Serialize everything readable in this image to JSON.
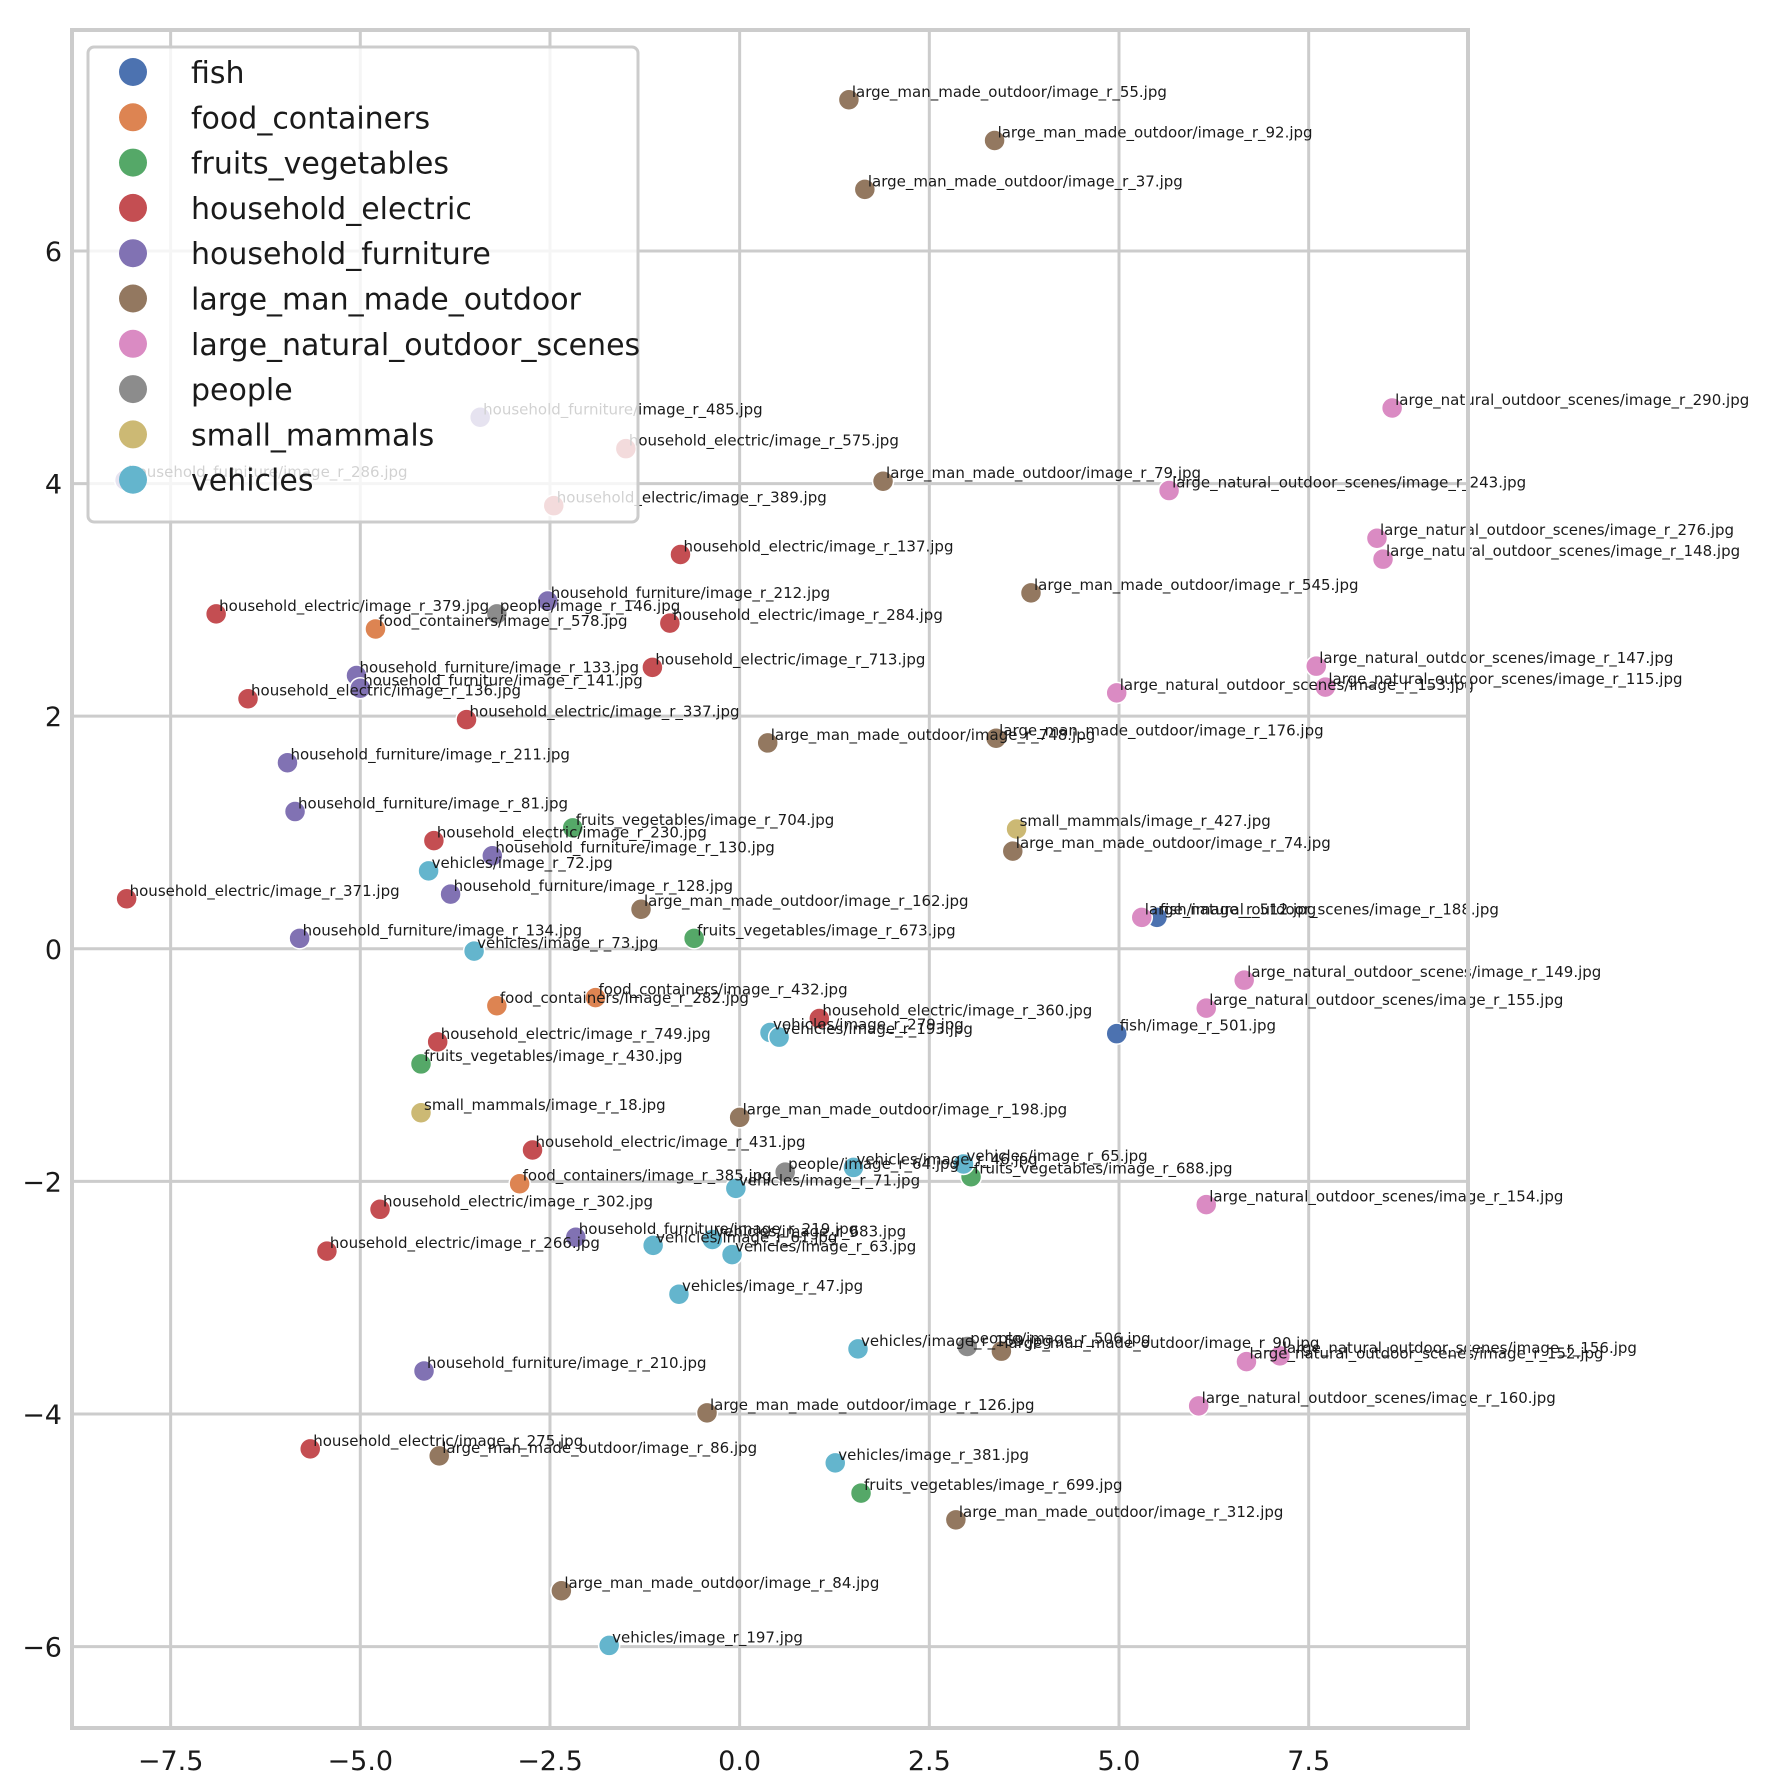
{
  "chart_data": {
    "type": "scatter",
    "title": "",
    "xlabel": "",
    "ylabel": "",
    "xlim": [
      -8.8,
      9.6
    ],
    "ylim": [
      -6.7,
      7.9
    ],
    "xticks": [
      -7.5,
      -5.0,
      -2.5,
      0.0,
      2.5,
      5.0,
      7.5
    ],
    "xtick_labels": [
      "−7.5",
      "−5.0",
      "−2.5",
      "0.0",
      "2.5",
      "5.0",
      "7.5"
    ],
    "yticks": [
      -6,
      -4,
      -2,
      0,
      2,
      4,
      6
    ],
    "ytick_labels": [
      "−6",
      "−4",
      "−2",
      "0",
      "2",
      "4",
      "6"
    ],
    "grid": true,
    "legend_position": "top-left",
    "categories": [
      {
        "name": "fish",
        "color": "#4c72b0"
      },
      {
        "name": "food_containers",
        "color": "#dd8452"
      },
      {
        "name": "fruits_vegetables",
        "color": "#55a868"
      },
      {
        "name": "household_electric",
        "color": "#c44e52"
      },
      {
        "name": "household_furniture",
        "color": "#8172b3"
      },
      {
        "name": "large_man_made_outdoor",
        "color": "#937860"
      },
      {
        "name": "large_natural_outdoor_scenes",
        "color": "#da8bc3"
      },
      {
        "name": "people",
        "color": "#8c8c8c"
      },
      {
        "name": "small_mammals",
        "color": "#ccb974"
      },
      {
        "name": "vehicles",
        "color": "#64b5cd"
      }
    ],
    "points": [
      {
        "x": 5.5,
        "y": 0.27,
        "c": 0,
        "label": "fish/image_r_512.jpg"
      },
      {
        "x": 4.97,
        "y": -0.73,
        "c": 0,
        "label": "fish/image_r_501.jpg"
      },
      {
        "x": -4.8,
        "y": 2.75,
        "c": 1,
        "label": "food_containers/image_r_578.jpg"
      },
      {
        "x": -3.2,
        "y": -0.49,
        "c": 1,
        "label": "food_containers/image_r_282.jpg"
      },
      {
        "x": -1.9,
        "y": -0.42,
        "c": 1,
        "label": "food_containers/image_r_432.jpg"
      },
      {
        "x": -2.9,
        "y": -2.02,
        "c": 1,
        "label": "food_containers/image_r_385.jpg"
      },
      {
        "x": -2.2,
        "y": 1.04,
        "c": 2,
        "label": "fruits_vegetables/image_r_704.jpg"
      },
      {
        "x": -0.6,
        "y": 0.09,
        "c": 2,
        "label": "fruits_vegetables/image_r_673.jpg"
      },
      {
        "x": -4.2,
        "y": -0.99,
        "c": 2,
        "label": "fruits_vegetables/image_r_430.jpg"
      },
      {
        "x": 3.05,
        "y": -1.96,
        "c": 2,
        "label": "fruits_vegetables/image_r_688.jpg"
      },
      {
        "x": 1.6,
        "y": -4.68,
        "c": 2,
        "label": "fruits_vegetables/image_r_699.jpg"
      },
      {
        "x": -1.5,
        "y": 4.3,
        "c": 3,
        "label": "household_electric/image_r_575.jpg"
      },
      {
        "x": -2.45,
        "y": 3.81,
        "c": 3,
        "label": "household_electric/image_r_389.jpg"
      },
      {
        "x": -0.78,
        "y": 3.39,
        "c": 3,
        "label": "household_electric/image_r_137.jpg"
      },
      {
        "x": -6.9,
        "y": 2.88,
        "c": 3,
        "label": "household_electric/image_r_379.jpg"
      },
      {
        "x": -0.92,
        "y": 2.8,
        "c": 3,
        "label": "household_electric/image_r_284.jpg"
      },
      {
        "x": -1.15,
        "y": 2.42,
        "c": 3,
        "label": "household_electric/image_r_713.jpg"
      },
      {
        "x": -6.48,
        "y": 2.15,
        "c": 3,
        "label": "household_electric/image_r_136.jpg"
      },
      {
        "x": -3.6,
        "y": 1.97,
        "c": 3,
        "label": "household_electric/image_r_337.jpg"
      },
      {
        "x": -4.03,
        "y": 0.93,
        "c": 3,
        "label": "household_electric/image_r_230.jpg"
      },
      {
        "x": -8.08,
        "y": 0.43,
        "c": 3,
        "label": "household_electric/image_r_371.jpg"
      },
      {
        "x": 1.05,
        "y": -0.6,
        "c": 3,
        "label": "household_electric/image_r_360.jpg"
      },
      {
        "x": -3.98,
        "y": -0.8,
        "c": 3,
        "label": "household_electric/image_r_749.jpg"
      },
      {
        "x": -2.73,
        "y": -1.73,
        "c": 3,
        "label": "household_electric/image_r_431.jpg"
      },
      {
        "x": -4.74,
        "y": -2.24,
        "c": 3,
        "label": "household_electric/image_r_302.jpg"
      },
      {
        "x": -5.44,
        "y": -2.6,
        "c": 3,
        "label": "household_electric/image_r_266.jpg"
      },
      {
        "x": -5.66,
        "y": -4.3,
        "c": 3,
        "label": "household_electric/image_r_275.jpg"
      },
      {
        "x": -3.42,
        "y": 4.57,
        "c": 4,
        "label": "household_furniture/image_r_485.jpg"
      },
      {
        "x": -8.1,
        "y": 4.03,
        "c": 4,
        "label": "household_furniture/image_r_286.jpg"
      },
      {
        "x": -2.53,
        "y": 2.99,
        "c": 4,
        "label": "household_furniture/image_r_212.jpg"
      },
      {
        "x": -5.05,
        "y": 2.35,
        "c": 4,
        "label": "household_furniture/image_r_133.jpg"
      },
      {
        "x": -5.0,
        "y": 2.24,
        "c": 4,
        "label": "household_furniture/image_r_141.jpg"
      },
      {
        "x": -5.96,
        "y": 1.6,
        "c": 4,
        "label": "household_furniture/image_r_211.jpg"
      },
      {
        "x": -5.86,
        "y": 1.18,
        "c": 4,
        "label": "household_furniture/image_r_81.jpg"
      },
      {
        "x": -3.26,
        "y": 0.8,
        "c": 4,
        "label": "household_furniture/image_r_130.jpg"
      },
      {
        "x": -3.81,
        "y": 0.47,
        "c": 4,
        "label": "household_furniture/image_r_128.jpg"
      },
      {
        "x": -5.8,
        "y": 0.09,
        "c": 4,
        "label": "household_furniture/image_r_134.jpg"
      },
      {
        "x": -2.16,
        "y": -2.48,
        "c": 4,
        "label": "household_furniture/image_r_219.jpg"
      },
      {
        "x": -4.16,
        "y": -3.63,
        "c": 4,
        "label": "household_furniture/image_r_210.jpg"
      },
      {
        "x": 1.44,
        "y": 7.3,
        "c": 5,
        "label": "large_man_made_outdoor/image_r_55.jpg"
      },
      {
        "x": 3.36,
        "y": 6.95,
        "c": 5,
        "label": "large_man_made_outdoor/image_r_92.jpg"
      },
      {
        "x": 1.65,
        "y": 6.53,
        "c": 5,
        "label": "large_man_made_outdoor/image_r_37.jpg"
      },
      {
        "x": 1.89,
        "y": 4.02,
        "c": 5,
        "label": "large_man_made_outdoor/image_r_79.jpg"
      },
      {
        "x": 3.84,
        "y": 3.06,
        "c": 5,
        "label": "large_man_made_outdoor/image_r_545.jpg"
      },
      {
        "x": 0.37,
        "y": 1.77,
        "c": 5,
        "label": "large_man_made_outdoor/image_r_748.jpg"
      },
      {
        "x": 3.38,
        "y": 1.81,
        "c": 5,
        "label": "large_man_made_outdoor/image_r_176.jpg"
      },
      {
        "x": 3.6,
        "y": 0.84,
        "c": 5,
        "label": "large_man_made_outdoor/image_r_74.jpg"
      },
      {
        "x": -1.3,
        "y": 0.34,
        "c": 5,
        "label": "large_man_made_outdoor/image_r_162.jpg"
      },
      {
        "x": 0.0,
        "y": -1.45,
        "c": 5,
        "label": "large_man_made_outdoor/image_r_198.jpg"
      },
      {
        "x": 3.45,
        "y": -3.46,
        "c": 5,
        "label": "large_man_made_outdoor/image_r_90.jpg"
      },
      {
        "x": -0.43,
        "y": -3.99,
        "c": 5,
        "label": "large_man_made_outdoor/image_r_126.jpg"
      },
      {
        "x": -3.96,
        "y": -4.36,
        "c": 5,
        "label": "large_man_made_outdoor/image_r_86.jpg"
      },
      {
        "x": 2.85,
        "y": -4.91,
        "c": 5,
        "label": "large_man_made_outdoor/image_r_312.jpg"
      },
      {
        "x": -2.35,
        "y": -5.52,
        "c": 5,
        "label": "large_man_made_outdoor/image_r_84.jpg"
      },
      {
        "x": 8.6,
        "y": 4.65,
        "c": 6,
        "label": "large_natural_outdoor_scenes/image_r_290.jpg"
      },
      {
        "x": 5.66,
        "y": 3.94,
        "c": 6,
        "label": "large_natural_outdoor_scenes/image_r_243.jpg"
      },
      {
        "x": 8.4,
        "y": 3.53,
        "c": 6,
        "label": "large_natural_outdoor_scenes/image_r_276.jpg"
      },
      {
        "x": 8.48,
        "y": 3.35,
        "c": 6,
        "label": "large_natural_outdoor_scenes/image_r_148.jpg"
      },
      {
        "x": 7.6,
        "y": 2.43,
        "c": 6,
        "label": "large_natural_outdoor_scenes/image_r_147.jpg"
      },
      {
        "x": 7.72,
        "y": 2.25,
        "c": 6,
        "label": "large_natural_outdoor_scenes/image_r_115.jpg"
      },
      {
        "x": 4.97,
        "y": 2.2,
        "c": 6,
        "label": "large_natural_outdoor_scenes/image_r_153.jpg"
      },
      {
        "x": 5.3,
        "y": 0.27,
        "c": 6,
        "label": "large_natural_outdoor_scenes/image_r_188.jpg"
      },
      {
        "x": 6.65,
        "y": -0.27,
        "c": 6,
        "label": "large_natural_outdoor_scenes/image_r_149.jpg"
      },
      {
        "x": 6.15,
        "y": -0.51,
        "c": 6,
        "label": "large_natural_outdoor_scenes/image_r_155.jpg"
      },
      {
        "x": 6.15,
        "y": -2.2,
        "c": 6,
        "label": "large_natural_outdoor_scenes/image_r_154.jpg"
      },
      {
        "x": 7.12,
        "y": -3.5,
        "c": 6,
        "label": "large_natural_outdoor_scenes/image_r_156.jpg"
      },
      {
        "x": 6.68,
        "y": -3.55,
        "c": 6,
        "label": "large_natural_outdoor_scenes/image_r_152.jpg"
      },
      {
        "x": 6.05,
        "y": -3.93,
        "c": 6,
        "label": "large_natural_outdoor_scenes/image_r_160.jpg"
      },
      {
        "x": -3.2,
        "y": 2.88,
        "c": 7,
        "label": "people/image_r_146.jpg"
      },
      {
        "x": 0.6,
        "y": -1.92,
        "c": 7,
        "label": "people/image_r_64.jpg"
      },
      {
        "x": 3.0,
        "y": -3.42,
        "c": 7,
        "label": "people/image_r_506.jpg"
      },
      {
        "x": 3.65,
        "y": 1.03,
        "c": 8,
        "label": "small_mammals/image_r_427.jpg"
      },
      {
        "x": -4.2,
        "y": -1.41,
        "c": 8,
        "label": "small_mammals/image_r_18.jpg"
      },
      {
        "x": -4.1,
        "y": 0.67,
        "c": 9,
        "label": "vehicles/image_r_72.jpg"
      },
      {
        "x": -3.5,
        "y": -0.02,
        "c": 9,
        "label": "vehicles/image_r_73.jpg"
      },
      {
        "x": 0.4,
        "y": -0.72,
        "c": 9,
        "label": "vehicles/image_r_279.jpg"
      },
      {
        "x": 0.52,
        "y": -0.76,
        "c": 9,
        "label": "vehicles/image_r_193.jpg"
      },
      {
        "x": 1.5,
        "y": -1.88,
        "c": 9,
        "label": "vehicles/image_r_46.jpg"
      },
      {
        "x": 2.95,
        "y": -1.85,
        "c": 9,
        "label": "vehicles/image_r_65.jpg"
      },
      {
        "x": -0.05,
        "y": -2.06,
        "c": 9,
        "label": "vehicles/image_r_71.jpg"
      },
      {
        "x": -0.36,
        "y": -2.5,
        "c": 9,
        "label": "vehicles/image_r_683.jpg"
      },
      {
        "x": -1.14,
        "y": -2.55,
        "c": 9,
        "label": "vehicles/image_r_61.jpg"
      },
      {
        "x": -0.1,
        "y": -2.63,
        "c": 9,
        "label": "vehicles/image_r_63.jpg"
      },
      {
        "x": -0.8,
        "y": -2.97,
        "c": 9,
        "label": "vehicles/image_r_47.jpg"
      },
      {
        "x": 1.56,
        "y": -3.44,
        "c": 9,
        "label": "vehicles/image_r_159.jpg"
      },
      {
        "x": 1.26,
        "y": -4.42,
        "c": 9,
        "label": "vehicles/image_r_381.jpg"
      },
      {
        "x": -1.72,
        "y": -5.99,
        "c": 9,
        "label": "vehicles/image_r_197.jpg"
      }
    ]
  }
}
